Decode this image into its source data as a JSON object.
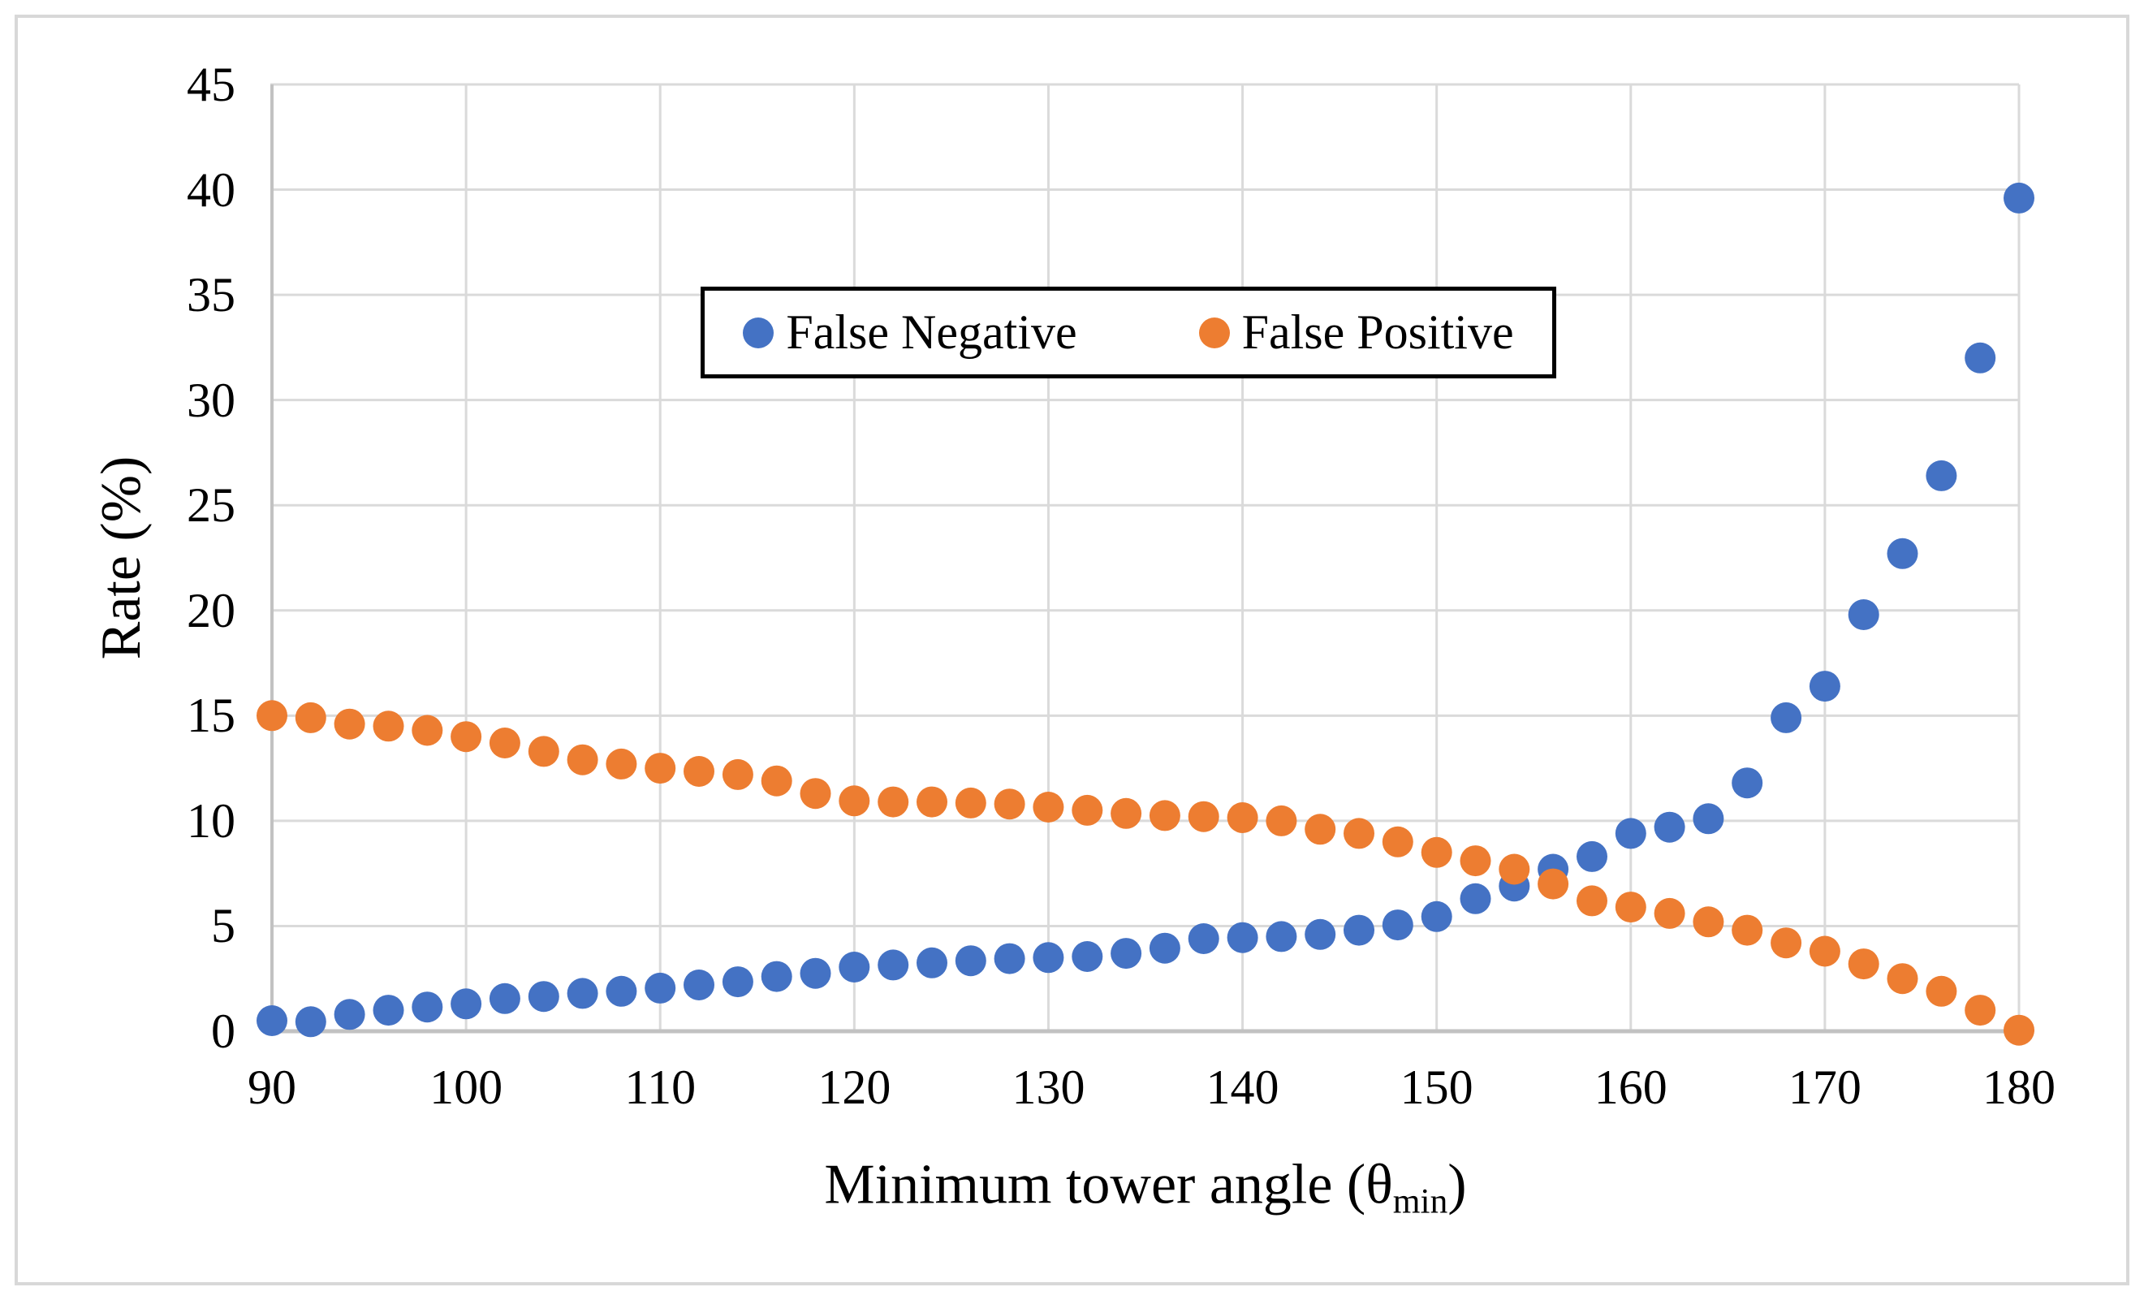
{
  "chart_data": {
    "type": "scatter",
    "title": "",
    "xlabel_main": "Minimum tower angle (θ",
    "xlabel_sub": "min",
    "xlabel_close": ")",
    "ylabel": "Rate (%)",
    "x": [
      90,
      92,
      94,
      96,
      98,
      100,
      102,
      104,
      106,
      108,
      110,
      112,
      114,
      116,
      118,
      120,
      122,
      124,
      126,
      128,
      130,
      132,
      134,
      136,
      138,
      140,
      142,
      144,
      146,
      148,
      150,
      152,
      154,
      156,
      158,
      160,
      162,
      164,
      166,
      168,
      170,
      172,
      174,
      176,
      178,
      180
    ],
    "series": [
      {
        "name": "False Negative",
        "color": "#4472C4",
        "values": [
          0.5,
          0.45,
          0.8,
          1.0,
          1.15,
          1.3,
          1.55,
          1.65,
          1.8,
          1.9,
          2.05,
          2.2,
          2.35,
          2.6,
          2.75,
          3.05,
          3.15,
          3.25,
          3.35,
          3.45,
          3.5,
          3.55,
          3.7,
          3.95,
          4.4,
          4.45,
          4.5,
          4.6,
          4.8,
          5.05,
          5.45,
          6.3,
          6.9,
          7.7,
          8.3,
          9.4,
          9.7,
          10.1,
          11.8,
          14.9,
          16.4,
          19.8,
          22.7,
          26.4,
          32.0,
          39.6
        ]
      },
      {
        "name": "False Positive",
        "color": "#ED7D31",
        "values": [
          15.0,
          14.9,
          14.6,
          14.5,
          14.3,
          14.0,
          13.7,
          13.3,
          12.9,
          12.7,
          12.5,
          12.35,
          12.2,
          11.9,
          11.3,
          10.95,
          10.9,
          10.9,
          10.85,
          10.8,
          10.65,
          10.5,
          10.35,
          10.25,
          10.2,
          10.15,
          10.0,
          9.6,
          9.4,
          9.0,
          8.5,
          8.1,
          7.7,
          7.0,
          6.2,
          5.9,
          5.6,
          5.2,
          4.8,
          4.2,
          3.8,
          3.2,
          2.5,
          1.9,
          1.0,
          0.05
        ]
      }
    ],
    "xlim": [
      90,
      180
    ],
    "ylim": [
      0,
      45
    ],
    "x_ticks": [
      90,
      100,
      110,
      120,
      130,
      140,
      150,
      160,
      170,
      180
    ],
    "y_ticks": [
      0,
      5,
      10,
      15,
      20,
      25,
      30,
      35,
      40,
      45
    ],
    "grid": true,
    "legend_position": "top-center"
  },
  "colors": {
    "gridline": "#DADADA",
    "axis": "#C2C2C2",
    "text": "#000000",
    "legend_border": "#000000",
    "background": "#FFFFFF",
    "outer_frame": "#D8D8D8"
  }
}
